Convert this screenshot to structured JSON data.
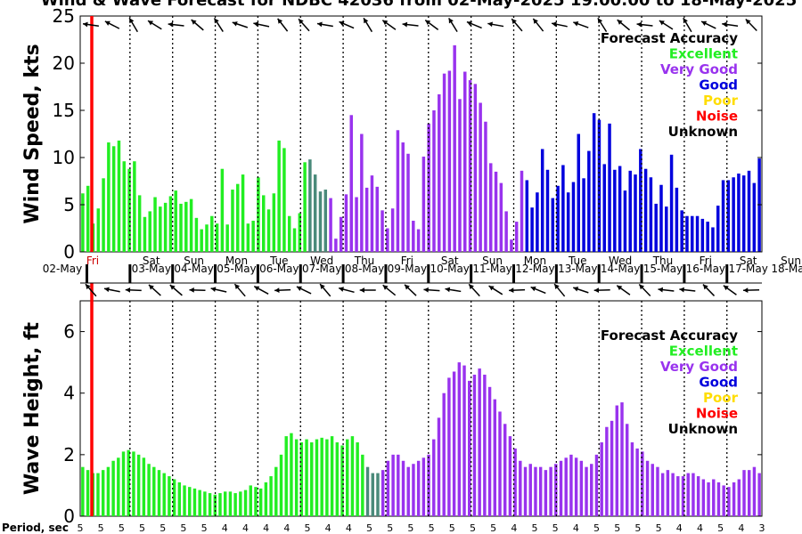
{
  "title": "Wind & Wave Forecast for NDBC 42036 from 02-May-2025 19:00:00 to 18-May-2025",
  "colors": {
    "Excellent": "#22ee22",
    "Very Good": "#9933ee",
    "Good": "#0000dd",
    "Poor": "#ffdd00",
    "Noise": "#ff0000",
    "Unknown": "#000000",
    "Transition": "#4a8a7a"
  },
  "legend": {
    "title": "Forecast Accuracy",
    "entries": [
      "Excellent",
      "Very Good",
      "Good",
      "Poor",
      "Noise",
      "Unknown"
    ]
  },
  "days": {
    "names": [
      "Fri",
      "Sat",
      "Sun",
      "Mon",
      "Tue",
      "Wed",
      "Thu",
      "Fri",
      "Sat",
      "Sun",
      "Mon",
      "Tue",
      "Wed",
      "Thu",
      "Fri",
      "Sat",
      "Sun"
    ],
    "dates": [
      "02-May",
      "03-May",
      "04-May",
      "05-May",
      "06-May",
      "07-May",
      "08-May",
      "09-May",
      "10-May",
      "11-May",
      "12-May",
      "13-May",
      "14-May",
      "15-May",
      "16-May",
      "17-May",
      "18-May"
    ],
    "now_marker_index": 3
  },
  "chart_data": [
    {
      "type": "bar",
      "ylabel": "Wind Speed, kts",
      "ylim": [
        0,
        25
      ],
      "yticks": [
        0,
        5,
        10,
        15,
        20,
        25
      ],
      "values": [
        6.2,
        7.0,
        3.0,
        4.6,
        7.8,
        11.6,
        11.2,
        11.8,
        9.6,
        8.8,
        9.6,
        6.0,
        3.7,
        4.3,
        5.8,
        4.8,
        5.2,
        5.9,
        6.5,
        5.1,
        5.3,
        5.6,
        3.6,
        2.4,
        2.9,
        3.8,
        3.0,
        8.8,
        2.9,
        6.6,
        7.2,
        8.2,
        3.0,
        3.3,
        7.9,
        6.0,
        4.5,
        6.2,
        11.8,
        11.0,
        3.8,
        2.5,
        4.1,
        9.5,
        9.8,
        8.2,
        6.4,
        6.6,
        5.7,
        1.4,
        3.7,
        6.1,
        14.5,
        5.8,
        12.5,
        6.8,
        8.1,
        6.9,
        4.4,
        2.5,
        4.6,
        12.9,
        11.6,
        10.4,
        3.3,
        2.4,
        10.1,
        13.6,
        15.0,
        16.7,
        18.9,
        19.2,
        21.9,
        16.2,
        19.1,
        18.2,
        17.8,
        15.8,
        13.8,
        9.4,
        8.5,
        7.3,
        4.3,
        1.3,
        3.2,
        8.6,
        7.6,
        4.7,
        6.3,
        10.9,
        8.7,
        5.7,
        7.0,
        9.2,
        6.3,
        7.4,
        12.5,
        7.8,
        10.7,
        14.7,
        14.0,
        9.3,
        13.6,
        8.7,
        9.1,
        6.5,
        8.6,
        8.2,
        10.9,
        8.8,
        7.9,
        5.1,
        7.1,
        4.8,
        10.3,
        6.8,
        4.4,
        3.8,
        3.8,
        3.8,
        3.5,
        3.2,
        2.6,
        4.9,
        7.6,
        7.6,
        7.9,
        8.3,
        8.1,
        8.6,
        7.3,
        9.9
      ]
    },
    {
      "type": "bar",
      "ylabel": "Wave Height, ft",
      "ylim": [
        0,
        7
      ],
      "yticks": [
        0,
        2,
        4,
        6
      ],
      "values": [
        1.6,
        1.5,
        1.4,
        1.4,
        1.5,
        1.6,
        1.8,
        1.9,
        2.1,
        2.15,
        2.1,
        2.0,
        1.9,
        1.7,
        1.6,
        1.5,
        1.4,
        1.3,
        1.2,
        1.1,
        1.0,
        0.95,
        0.9,
        0.85,
        0.8,
        0.75,
        0.7,
        0.75,
        0.8,
        0.8,
        0.75,
        0.8,
        0.85,
        1.0,
        0.95,
        0.9,
        1.1,
        1.3,
        1.6,
        2.0,
        2.6,
        2.7,
        2.5,
        2.4,
        2.5,
        2.4,
        2.5,
        2.55,
        2.5,
        2.6,
        2.4,
        2.3,
        2.5,
        2.6,
        2.4,
        2.0,
        1.6,
        1.4,
        1.4,
        1.5,
        1.8,
        2.0,
        2.0,
        1.8,
        1.6,
        1.7,
        1.8,
        1.9,
        2.0,
        2.5,
        3.2,
        4.0,
        4.5,
        4.7,
        5.0,
        4.9,
        4.4,
        4.6,
        4.8,
        4.6,
        4.2,
        3.8,
        3.4,
        3.0,
        2.6,
        2.2,
        1.8,
        1.6,
        1.7,
        1.6,
        1.6,
        1.5,
        1.6,
        1.7,
        1.8,
        1.9,
        2.0,
        1.9,
        1.8,
        1.6,
        1.7,
        2.0,
        2.4,
        2.9,
        3.1,
        3.6,
        3.7,
        3.0,
        2.4,
        2.2,
        2.1,
        1.8,
        1.7,
        1.6,
        1.4,
        1.5,
        1.4,
        1.3,
        1.3,
        1.4,
        1.4,
        1.3,
        1.2,
        1.1,
        1.2,
        1.1,
        1.0,
        0.95,
        1.1,
        1.2,
        1.5,
        1.5,
        1.6,
        1.4
      ]
    }
  ],
  "period": {
    "label": "Period, sec",
    "values": [
      "5",
      "5",
      "5",
      "5",
      "5",
      "5",
      "5",
      "4",
      "4",
      "4",
      "4",
      "5",
      "4",
      "4",
      "5",
      "5",
      "5",
      "5",
      "5",
      "5",
      "5",
      "4",
      "5",
      "5",
      "4",
      "5",
      "5",
      "5",
      "5",
      "4",
      "4",
      "5",
      "4",
      "3"
    ]
  }
}
